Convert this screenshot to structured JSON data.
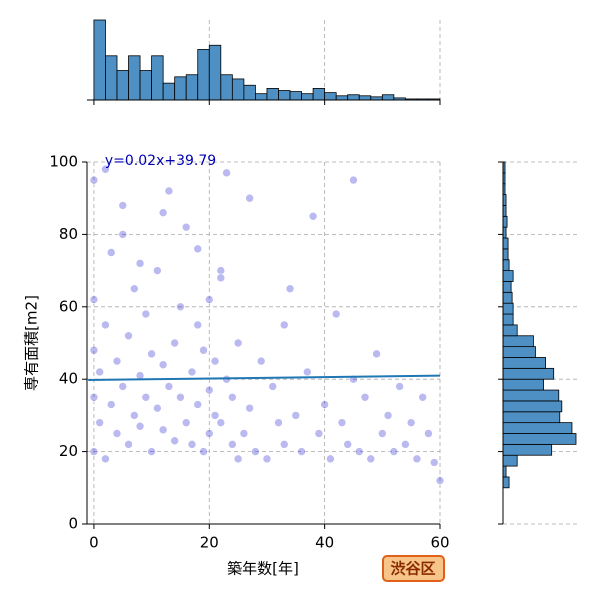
{
  "chart_data": {
    "type": "jointplot",
    "x_label": "築年数[年]",
    "y_label": "専有面積[m2]",
    "annotation": "y=0.02x+39.79",
    "badge": "渋谷区",
    "xlim": [
      -1.2,
      60
    ],
    "ylim": [
      0,
      100
    ],
    "xticks": [
      0,
      20,
      40,
      60
    ],
    "yticks": [
      0,
      20,
      40,
      60,
      80,
      100
    ],
    "grid": true,
    "scatter": {
      "color": "#1a1acc",
      "x": [
        0,
        0,
        0,
        0,
        0,
        1,
        1,
        2,
        2,
        3,
        3,
        4,
        4,
        5,
        5,
        6,
        6,
        7,
        7,
        8,
        8,
        9,
        9,
        10,
        10,
        11,
        11,
        12,
        12,
        13,
        13,
        14,
        14,
        15,
        15,
        16,
        16,
        17,
        17,
        18,
        18,
        19,
        19,
        20,
        20,
        20,
        21,
        21,
        22,
        22,
        23,
        23,
        24,
        24,
        25,
        25,
        26,
        27,
        28,
        29,
        30,
        31,
        32,
        33,
        34,
        35,
        36,
        37,
        38,
        39,
        40,
        41,
        42,
        43,
        44,
        45,
        46,
        47,
        48,
        49,
        50,
        51,
        52,
        53,
        54,
        55,
        56,
        57,
        58,
        59,
        60,
        2,
        5,
        8,
        12,
        18,
        22,
        27,
        33,
        45
      ],
      "y": [
        20,
        35,
        48,
        62,
        95,
        28,
        42,
        18,
        55,
        33,
        75,
        25,
        45,
        38,
        88,
        22,
        52,
        30,
        65,
        41,
        27,
        35,
        58,
        20,
        47,
        32,
        70,
        26,
        44,
        38,
        92,
        23,
        50,
        35,
        60,
        28,
        82,
        42,
        22,
        33,
        55,
        20,
        48,
        37,
        62,
        25,
        30,
        45,
        28,
        70,
        40,
        97,
        22,
        35,
        18,
        50,
        25,
        32,
        20,
        45,
        18,
        38,
        28,
        22,
        65,
        30,
        20,
        42,
        85,
        25,
        33,
        18,
        58,
        28,
        22,
        40,
        20,
        35,
        18,
        47,
        25,
        30,
        20,
        38,
        22,
        28,
        18,
        35,
        25,
        17,
        12,
        98,
        80,
        72,
        86,
        76,
        68,
        90,
        55,
        95
      ]
    },
    "regression": {
      "color": "#1f77b4",
      "x": [
        -1,
        60
      ],
      "y": [
        39.77,
        40.99
      ]
    },
    "x_hist": {
      "color": "#4f90c4",
      "bins": [
        0,
        2,
        4,
        6,
        8,
        10,
        12,
        14,
        16,
        18,
        20,
        22,
        24,
        26,
        28,
        30,
        32,
        34,
        36,
        38,
        40,
        42,
        44,
        46,
        48,
        50,
        52,
        54,
        56,
        58,
        60
      ],
      "counts": [
        76,
        42,
        28,
        42,
        28,
        42,
        16,
        22,
        24,
        48,
        52,
        24,
        20,
        14,
        6,
        11,
        9,
        8,
        6,
        11,
        7,
        4,
        5,
        4,
        3,
        5,
        2,
        1,
        1,
        1
      ]
    },
    "y_hist": {
      "color": "#4f90c4",
      "bins": [
        10,
        13,
        16,
        19,
        22,
        25,
        28,
        31,
        34,
        37,
        40,
        43,
        46,
        49,
        52,
        55,
        58,
        61,
        64,
        67,
        70,
        73,
        76,
        79,
        82,
        85,
        88,
        91,
        94,
        97,
        100
      ],
      "counts": [
        6,
        3,
        14,
        48,
        72,
        68,
        56,
        58,
        55,
        40,
        50,
        42,
        32,
        30,
        14,
        10,
        10,
        9,
        8,
        10,
        6,
        5,
        5,
        3,
        4,
        3,
        3,
        2,
        2,
        2
      ]
    }
  }
}
